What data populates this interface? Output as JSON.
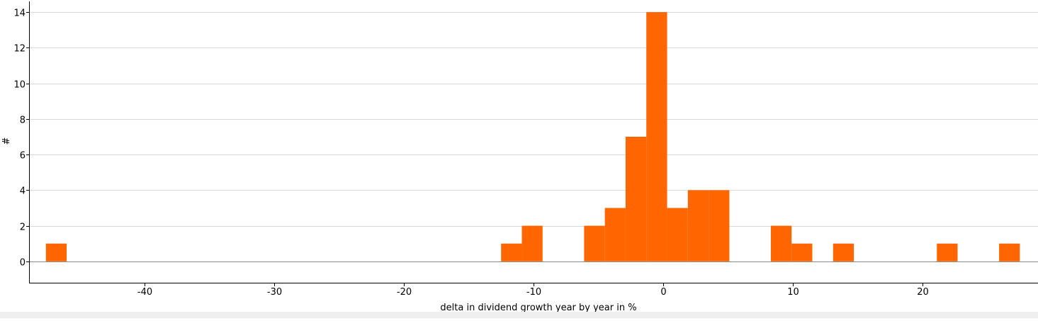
{
  "chart_data": {
    "type": "bar",
    "title": "",
    "xlabel": "delta in dividend growth year by year in %",
    "ylabel": "#",
    "xlim": [
      -48.9,
      28.9
    ],
    "ylim": [
      -1.2,
      14.6
    ],
    "xticks": [
      -40,
      -30,
      -20,
      -10,
      0,
      10,
      20
    ],
    "xtick_labels": [
      "-40",
      "-30",
      "-20",
      "-10",
      "0",
      "10",
      "20"
    ],
    "yticks": [
      0,
      2,
      4,
      6,
      8,
      10,
      12,
      14
    ],
    "ytick_labels": [
      "0",
      "2",
      "4",
      "6",
      "8",
      "10",
      "12",
      "14"
    ],
    "grid": "horizontal",
    "bar_color": "#ff6600",
    "bins": [
      {
        "x0": -47.6,
        "x1": -46.0,
        "value": 1
      },
      {
        "x0": -12.5,
        "x1": -10.9,
        "value": 1
      },
      {
        "x0": -10.9,
        "x1": -9.3,
        "value": 2
      },
      {
        "x0": -6.1,
        "x1": -4.5,
        "value": 2
      },
      {
        "x0": -4.5,
        "x1": -2.9,
        "value": 3
      },
      {
        "x0": -2.9,
        "x1": -1.3,
        "value": 7
      },
      {
        "x0": -1.3,
        "x1": 0.3,
        "value": 14
      },
      {
        "x0": 0.3,
        "x1": 1.9,
        "value": 3
      },
      {
        "x0": 1.9,
        "x1": 3.5,
        "value": 4
      },
      {
        "x0": 3.5,
        "x1": 5.1,
        "value": 4
      },
      {
        "x0": 8.3,
        "x1": 9.9,
        "value": 2
      },
      {
        "x0": 9.9,
        "x1": 11.5,
        "value": 1
      },
      {
        "x0": 13.1,
        "x1": 14.7,
        "value": 1
      },
      {
        "x0": 21.1,
        "x1": 22.7,
        "value": 1
      },
      {
        "x0": 25.9,
        "x1": 27.5,
        "value": 1
      }
    ]
  }
}
